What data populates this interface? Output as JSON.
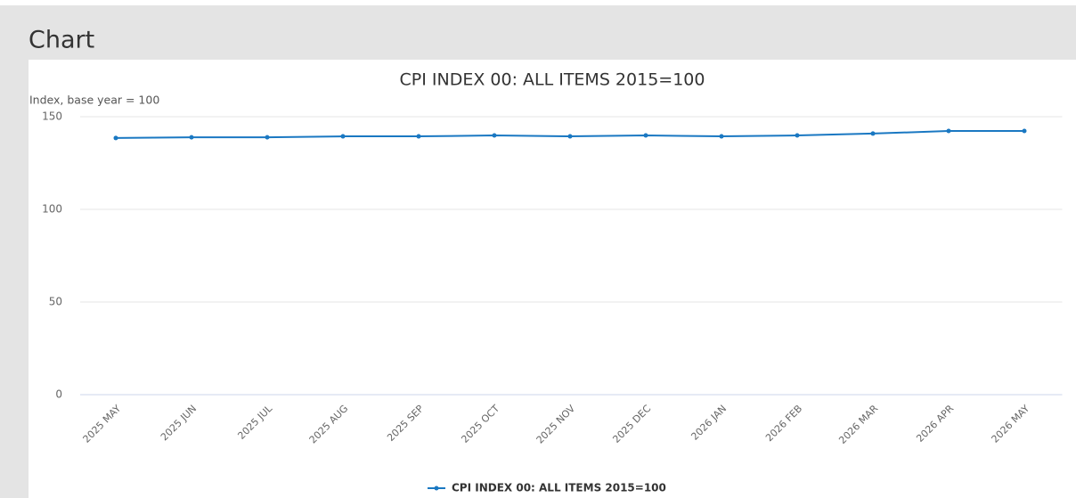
{
  "panel_title": "Chart",
  "chart_data": {
    "type": "line",
    "title": "CPI INDEX 00: ALL ITEMS 2015=100",
    "y_label": "Index, base year = 100",
    "categories": [
      "2025 MAY",
      "2025 JUN",
      "2025 JUL",
      "2025 AUG",
      "2025 SEP",
      "2025 OCT",
      "2025 NOV",
      "2025 DEC",
      "2026 JAN",
      "2026 FEB",
      "2026 MAR",
      "2026 APR",
      "2026 MAY"
    ],
    "series": [
      {
        "name": "CPI INDEX 00: ALL ITEMS 2015=100",
        "color": "#1a78c2",
        "values": [
          138.5,
          138.9,
          138.9,
          139.4,
          139.4,
          139.9,
          139.4,
          139.9,
          139.4,
          139.9,
          140.9,
          142.3,
          142.3
        ]
      }
    ],
    "ylim": [
      0,
      150
    ],
    "yticks": [
      0,
      50,
      100,
      150
    ],
    "grid": true,
    "legend": "bottom"
  }
}
